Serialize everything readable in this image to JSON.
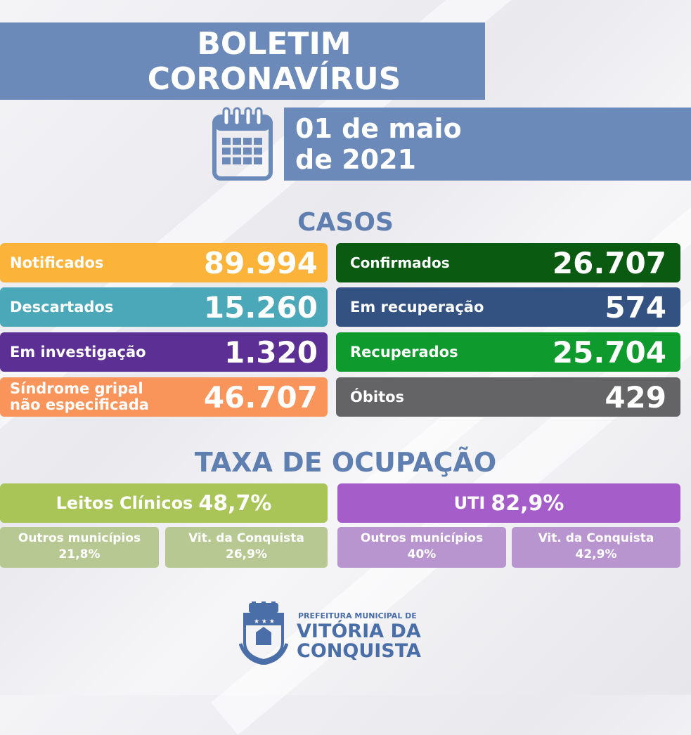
{
  "header": {
    "title_line1": "BOLETIM",
    "title_line2": "CORONAVÍRUS",
    "date_line1": "01 de maio",
    "date_line2": "de 2021"
  },
  "cases": {
    "heading": "CASOS",
    "items": [
      {
        "label": "Notificados",
        "value": "89.994",
        "color": "#fbb33a"
      },
      {
        "label": "Confirmados",
        "value": "26.707",
        "color": "#0a5a12"
      },
      {
        "label": "Descartados",
        "value": "15.260",
        "color": "#4ba8b9"
      },
      {
        "label": "Em recuperação",
        "value": "574",
        "color": "#335281"
      },
      {
        "label": "Em investigação",
        "value": "1.320",
        "color": "#5b2f93"
      },
      {
        "label": "Recuperados",
        "value": "25.704",
        "color": "#0e9a2d"
      },
      {
        "label_line1": "Síndrome gripal",
        "label_line2": "não especificada",
        "value": "46.707",
        "color": "#f9955b"
      },
      {
        "label": "Óbitos",
        "value": "429",
        "color": "#646466"
      }
    ]
  },
  "occupancy": {
    "heading": "TAXA DE OCUPAÇÃO",
    "clinical": {
      "label": "Leitos Clínicos",
      "value": "48,7%",
      "color": "#a9c457",
      "sub_color": "#b8c893",
      "sub": [
        {
          "label": "Outros municípios",
          "value": "21,8%"
        },
        {
          "label": "Vit. da Conquista",
          "value": "26,9%"
        }
      ]
    },
    "uti": {
      "label": "UTI",
      "value": "82,9%",
      "color": "#a55ec9",
      "sub_color": "#b995cf",
      "sub": [
        {
          "label": "Outros municípios",
          "value": "40%"
        },
        {
          "label": "Vit. da Conquista",
          "value": "42,9%"
        }
      ]
    }
  },
  "footer": {
    "line1": "PREFEITURA MUNICIPAL DE",
    "line2": "VITÓRIA DA",
    "line3": "CONQUISTA",
    "seal_icon": "city-coat-of-arms-icon"
  },
  "colors": {
    "accent": "#6b89b9",
    "heading": "#5f7fb1",
    "logo": "#4a6ea8"
  }
}
